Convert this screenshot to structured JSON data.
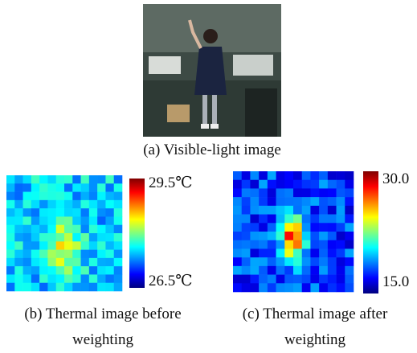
{
  "figure": {
    "panels": [
      {
        "caption": "(a) Visible-light image"
      },
      {
        "caption_lines": [
          "(b) Thermal image before",
          "weighting"
        ],
        "colorbar": {
          "max_label": "29.5℃",
          "min_label": "26.5℃"
        }
      },
      {
        "caption_lines": [
          "(c) Thermal image after",
          "weighting"
        ],
        "colorbar": {
          "max_label": "30.0",
          "min_label": "15.0"
        }
      }
    ]
  }
}
